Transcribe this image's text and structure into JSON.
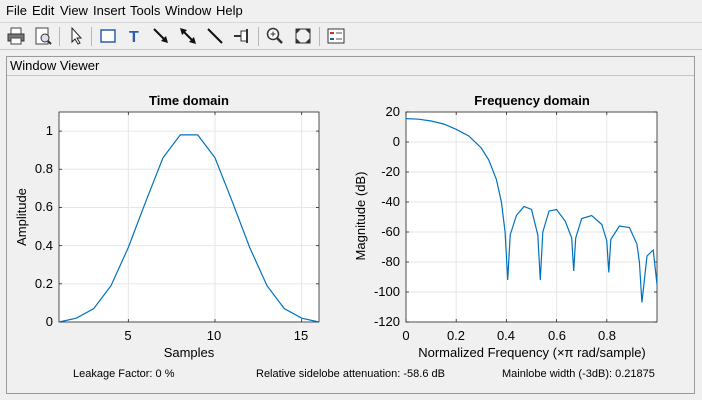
{
  "menu": [
    "File",
    "Edit",
    "View",
    "Insert",
    "Tools",
    "Window",
    "Help"
  ],
  "toolbar_icons": [
    "print-icon",
    "print-preview-icon",
    "pointer-icon",
    "insert-rectangle-icon",
    "insert-text-icon",
    "insert-arrow-icon",
    "insert-double-arrow-icon",
    "insert-line-icon",
    "pin-icon",
    "zoom-in-icon",
    "full-view-icon",
    "legend-icon"
  ],
  "panel": {
    "title": "Window Viewer"
  },
  "time_plot": {
    "title": "Time domain",
    "xlabel": "Samples",
    "ylabel": "Amplitude",
    "xticks": [
      "5",
      "10",
      "15"
    ],
    "yticks": [
      "0",
      "0.2",
      "0.4",
      "0.6",
      "0.8",
      "1"
    ]
  },
  "freq_plot": {
    "title": "Frequency domain",
    "xlabel": "Normalized Frequency  (×π rad/sample)",
    "ylabel": "Magnitude (dB)",
    "xticks": [
      "0",
      "0.2",
      "0.4",
      "0.6",
      "0.8"
    ],
    "yticks": [
      "20",
      "0",
      "-20",
      "-40",
      "-60",
      "-80",
      "-100",
      "-120"
    ]
  },
  "status": {
    "leakage": "Leakage Factor: 0 %",
    "sidelobe": "Relative sidelobe attenuation: -58.6 dB",
    "mainlobe": "Mainlobe width (-3dB): 0.21875"
  },
  "colors": {
    "line": "#0072bd",
    "grid": "#e6e6e6",
    "axes_bg": "#ffffff"
  },
  "chart_data": [
    {
      "type": "line",
      "title": "Time domain",
      "xlabel": "Samples",
      "ylabel": "Amplitude",
      "xlim": [
        1,
        16
      ],
      "ylim": [
        0,
        1.1
      ],
      "grid": true,
      "x": [
        1,
        2,
        3,
        4,
        5,
        6,
        7,
        8,
        9,
        10,
        11,
        12,
        13,
        14,
        15,
        16
      ],
      "y": [
        0.0,
        0.02,
        0.07,
        0.19,
        0.39,
        0.63,
        0.86,
        0.98,
        0.98,
        0.86,
        0.63,
        0.39,
        0.19,
        0.07,
        0.02,
        0.0
      ]
    },
    {
      "type": "line",
      "title": "Frequency domain",
      "xlabel": "Normalized Frequency  (×π rad/sample)",
      "ylabel": "Magnitude (dB)",
      "xlim": [
        0,
        1
      ],
      "ylim": [
        -120,
        20
      ],
      "grid": true,
      "x": [
        0,
        0.05,
        0.1,
        0.15,
        0.2,
        0.25,
        0.3,
        0.33,
        0.36,
        0.38,
        0.395,
        0.405,
        0.415,
        0.44,
        0.47,
        0.5,
        0.525,
        0.535,
        0.545,
        0.57,
        0.6,
        0.635,
        0.66,
        0.668,
        0.676,
        0.7,
        0.74,
        0.78,
        0.8,
        0.808,
        0.816,
        0.85,
        0.89,
        0.92,
        0.93,
        0.94,
        0.96,
        0.985,
        1.0
      ],
      "y": [
        15.6,
        15.2,
        14.0,
        12.0,
        8.5,
        4.0,
        -4.0,
        -12.0,
        -25.0,
        -40.0,
        -60.0,
        -92.0,
        -62.0,
        -49.0,
        -43.0,
        -45.0,
        -62.0,
        -92.0,
        -60.0,
        -46.0,
        -45.0,
        -53.0,
        -64.0,
        -86.0,
        -64.0,
        -51.0,
        -49.0,
        -55.0,
        -66.0,
        -87.0,
        -65.0,
        -56.0,
        -57.0,
        -68.0,
        -80.0,
        -107.0,
        -76.0,
        -72.0,
        -95.0
      ]
    }
  ]
}
